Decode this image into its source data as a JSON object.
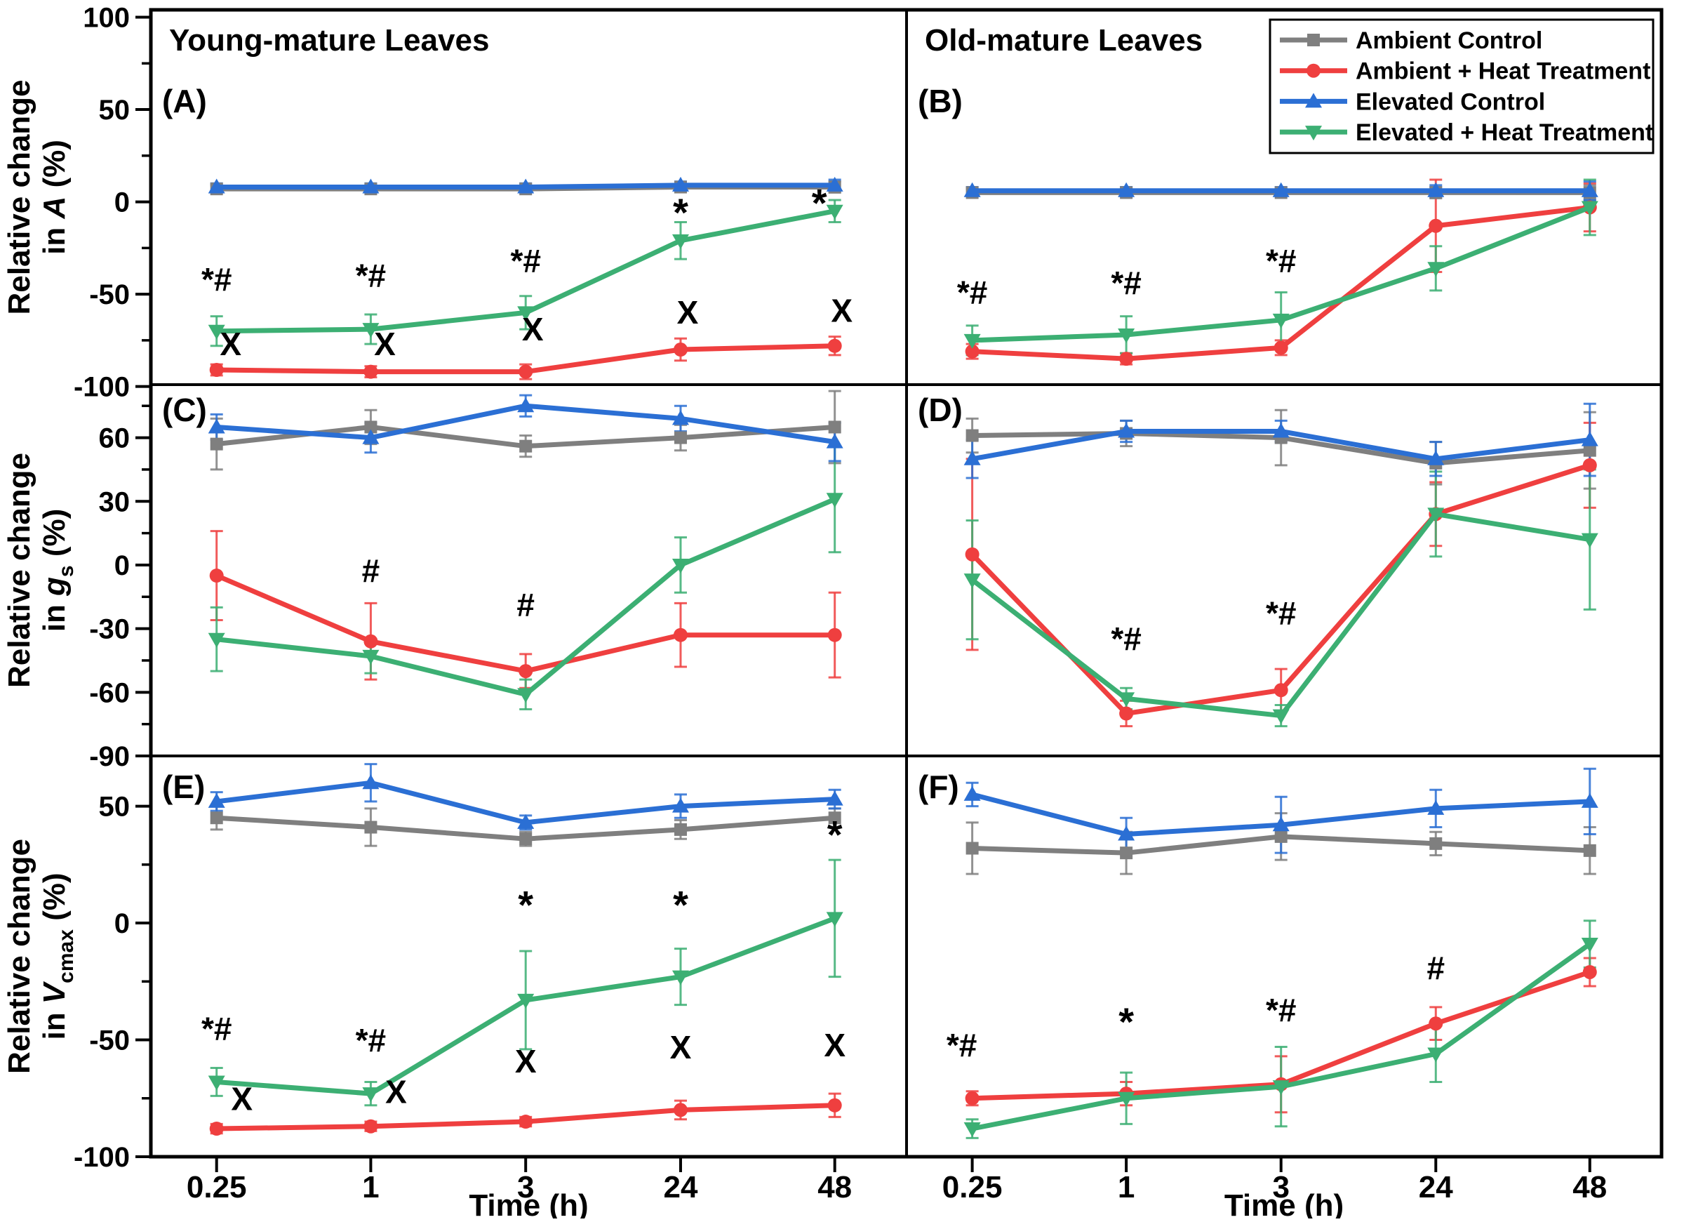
{
  "figure": {
    "background": "#ffffff",
    "frame_color": "#000000",
    "text_color": "#000000"
  },
  "legend": {
    "border_color": "#000000",
    "entries_from": "series_meta"
  },
  "series_meta": [
    {
      "key": "ambient_control",
      "label": "Ambient Control",
      "color": "#7F7F7F",
      "marker": "square"
    },
    {
      "key": "ambient_heat",
      "label": "Ambient + Heat Treatment",
      "color": "#EF3F3F",
      "marker": "circle"
    },
    {
      "key": "elevated_control",
      "label": "Elevated Control",
      "color": "#2B6FD4",
      "marker": "triangle-up"
    },
    {
      "key": "elevated_heat",
      "label": "Elevated + Heat Treatment",
      "color": "#3CAF73",
      "marker": "triangle-down"
    }
  ],
  "chart_data": {
    "type": "line",
    "x_axis": {
      "categories": [
        "0.25",
        "1",
        "3",
        "24",
        "48"
      ],
      "label": "Time (h)"
    },
    "rows": [
      {
        "ylabel_line1": "Relative change",
        "ylabel_pre": "in ",
        "ylabel_var": "A",
        "ylabel_sub": "",
        "ylabel_post": " (%)",
        "yticks": [
          100,
          50,
          0,
          -50,
          -100
        ],
        "yminor": [
          75,
          25,
          -25,
          -75
        ],
        "ylim": [
          -99,
          104
        ]
      },
      {
        "ylabel_line1": "Relative change",
        "ylabel_pre": "in ",
        "ylabel_var": "g",
        "ylabel_sub": "s",
        "ylabel_post": " (%)",
        "yticks": [
          60,
          30,
          0,
          -30,
          -60,
          -90
        ],
        "yminor": [
          75,
          45,
          15,
          -15,
          -45,
          -75
        ],
        "ylim": [
          -90,
          85
        ]
      },
      {
        "ylabel_line1": "Relative change",
        "ylabel_pre": "in ",
        "ylabel_var": "V",
        "ylabel_sub": "cmax",
        "ylabel_post": " (%)",
        "yticks": [
          50,
          0,
          -50,
          -100
        ],
        "yminor": [
          25,
          -25,
          -75
        ],
        "ylim": [
          -100,
          71.5
        ]
      }
    ],
    "panels": [
      {
        "id": "A",
        "letter": "(A)",
        "row": 0,
        "col": 0,
        "title": "Young-mature Leaves",
        "series": {
          "ambient_control": {
            "values": [
              7,
              7,
              7,
              8,
              8
            ],
            "err": [
              2,
              2,
              2,
              2,
              3
            ]
          },
          "ambient_heat": {
            "values": [
              -91,
              -92,
              -92,
              -80,
              -78
            ],
            "err": [
              3,
              3,
              4,
              6,
              5
            ]
          },
          "elevated_control": {
            "values": [
              8,
              8,
              8,
              9,
              9
            ],
            "err": [
              2,
              2,
              2,
              2,
              3
            ]
          },
          "elevated_heat": {
            "values": [
              -70,
              -69,
              -60,
              -21,
              -5
            ],
            "err": [
              8,
              8,
              9,
              10,
              6
            ]
          }
        },
        "annotations": [
          {
            "cat": 0,
            "y": -48,
            "text": "*#"
          },
          {
            "cat": 1,
            "y": -46,
            "text": "*#"
          },
          {
            "cat": 2,
            "y": -38,
            "text": "*#"
          },
          {
            "cat": 3,
            "y": -13,
            "text": "*"
          },
          {
            "cat": 4,
            "y": -8,
            "text": "*",
            "dx": -22
          },
          {
            "cat": 0,
            "y": -83,
            "text": "X",
            "dx": 20
          },
          {
            "cat": 1,
            "y": -83,
            "text": "X",
            "dx": 20
          },
          {
            "cat": 2,
            "y": -75,
            "text": "X",
            "dx": 10
          },
          {
            "cat": 3,
            "y": -66,
            "text": "X",
            "dx": 10
          },
          {
            "cat": 4,
            "y": -65,
            "text": "X",
            "dx": 10
          }
        ]
      },
      {
        "id": "B",
        "letter": "(B)",
        "row": 0,
        "col": 1,
        "title": "Old-mature Leaves",
        "series": {
          "ambient_control": {
            "values": [
              5,
              5,
              5,
              5,
              5
            ],
            "err": [
              2,
              2,
              2,
              3,
              4
            ]
          },
          "ambient_heat": {
            "values": [
              -81,
              -85,
              -79,
              -13,
              -3
            ],
            "err": [
              4,
              3,
              4,
              25,
              13
            ]
          },
          "elevated_control": {
            "values": [
              6,
              6,
              6,
              6,
              6
            ],
            "err": [
              2,
              2,
              2,
              3,
              5
            ]
          },
          "elevated_heat": {
            "values": [
              -75,
              -72,
              -64,
              -36,
              -3
            ],
            "err": [
              8,
              10,
              15,
              12,
              15
            ]
          }
        },
        "annotations": [
          {
            "cat": 0,
            "y": -55,
            "text": "*#"
          },
          {
            "cat": 1,
            "y": -50,
            "text": "*#"
          },
          {
            "cat": 2,
            "y": -38,
            "text": "*#"
          }
        ]
      },
      {
        "id": "C",
        "letter": "(C)",
        "row": 1,
        "col": 0,
        "title": "",
        "series": {
          "ambient_control": {
            "values": [
              57,
              65,
              56,
              60,
              65
            ],
            "err": [
              12,
              8,
              5,
              6,
              17
            ]
          },
          "ambient_heat": {
            "values": [
              -5,
              -36,
              -50,
              -33,
              -33
            ],
            "err": [
              21,
              18,
              8,
              15,
              20
            ]
          },
          "elevated_control": {
            "values": [
              65,
              60,
              75,
              69,
              58
            ],
            "err": [
              6,
              7,
              5,
              6,
              9
            ]
          },
          "elevated_heat": {
            "values": [
              -35,
              -43,
              -61,
              0,
              31
            ],
            "err": [
              15,
              8,
              7,
              13,
              25
            ]
          }
        },
        "annotations": [
          {
            "cat": 1,
            "y": -8,
            "text": "#"
          },
          {
            "cat": 2,
            "y": -24,
            "text": "#"
          }
        ]
      },
      {
        "id": "D",
        "letter": "(D)",
        "row": 1,
        "col": 1,
        "title": "",
        "series": {
          "ambient_control": {
            "values": [
              61,
              62,
              60,
              48,
              54
            ],
            "err": [
              8,
              6,
              13,
              10,
              18
            ]
          },
          "ambient_heat": {
            "values": [
              5,
              -70,
              -59,
              24,
              47
            ],
            "err": [
              45,
              6,
              10,
              15,
              20
            ]
          },
          "elevated_control": {
            "values": [
              50,
              63,
              63,
              50,
              59
            ],
            "err": [
              9,
              5,
              5,
              8,
              17
            ]
          },
          "elevated_heat": {
            "values": [
              -7,
              -63,
              -71,
              24,
              12
            ],
            "err": [
              28,
              5,
              5,
              20,
              33
            ]
          }
        },
        "annotations": [
          {
            "cat": 1,
            "y": -40,
            "text": "*#"
          },
          {
            "cat": 2,
            "y": -28,
            "text": "*#"
          }
        ]
      },
      {
        "id": "E",
        "letter": "(E)",
        "row": 2,
        "col": 0,
        "title": "",
        "series": {
          "ambient_control": {
            "values": [
              45,
              41,
              36,
              40,
              45
            ],
            "err": [
              5,
              8,
              3,
              4,
              4
            ]
          },
          "ambient_heat": {
            "values": [
              -88,
              -87,
              -85,
              -80,
              -78
            ],
            "err": [
              2,
              2,
              2,
              4,
              5
            ]
          },
          "elevated_control": {
            "values": [
              52,
              60,
              43,
              50,
              53
            ],
            "err": [
              4,
              8,
              3,
              5,
              4
            ]
          },
          "elevated_heat": {
            "values": [
              -68,
              -73,
              -33,
              -23,
              2
            ],
            "err": [
              6,
              5,
              21,
              12,
              25
            ]
          }
        },
        "annotations": [
          {
            "cat": 0,
            "y": -50,
            "text": "*#"
          },
          {
            "cat": 1,
            "y": -55,
            "text": "*#"
          },
          {
            "cat": 0,
            "y": -80,
            "text": "X",
            "dx": 36
          },
          {
            "cat": 1,
            "y": -77,
            "text": "X",
            "dx": 36
          },
          {
            "cat": 2,
            "y": -64,
            "text": "X"
          },
          {
            "cat": 3,
            "y": -58,
            "text": "X"
          },
          {
            "cat": 4,
            "y": -57,
            "text": "X"
          },
          {
            "cat": 2,
            "y": 2,
            "text": "*"
          },
          {
            "cat": 3,
            "y": 2,
            "text": "*"
          },
          {
            "cat": 4,
            "y": 32,
            "text": "*"
          }
        ]
      },
      {
        "id": "F",
        "letter": "(F)",
        "row": 2,
        "col": 1,
        "title": "",
        "series": {
          "ambient_control": {
            "values": [
              32,
              30,
              37,
              34,
              31
            ],
            "err": [
              11,
              9,
              10,
              5,
              10
            ]
          },
          "ambient_heat": {
            "values": [
              -75,
              -73,
              -69,
              -43,
              -21
            ],
            "err": [
              3,
              5,
              12,
              7,
              6
            ]
          },
          "elevated_control": {
            "values": [
              55,
              38,
              42,
              49,
              52
            ],
            "err": [
              5,
              7,
              12,
              8,
              14
            ]
          },
          "elevated_heat": {
            "values": [
              -88,
              -75,
              -70,
              -56,
              -9
            ],
            "err": [
              4,
              11,
              17,
              12,
              10
            ]
          }
        },
        "annotations": [
          {
            "cat": 0,
            "y": -57,
            "text": "*#",
            "dx": -15
          },
          {
            "cat": 1,
            "y": -48,
            "text": "*"
          },
          {
            "cat": 2,
            "y": -42,
            "text": "*#"
          },
          {
            "cat": 3,
            "y": -24,
            "text": "#"
          }
        ]
      }
    ]
  }
}
